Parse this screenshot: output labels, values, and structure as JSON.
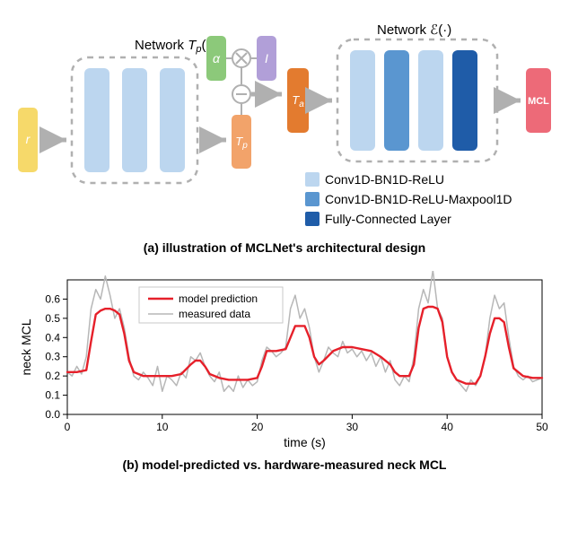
{
  "arch": {
    "label_Tp": "Network T_p(·)",
    "label_E": "Network ℰ(·)",
    "r": "r",
    "alpha": "α",
    "I": "I",
    "Ta": "T_a",
    "Tp": "T_p",
    "MCL": "MCL",
    "colors": {
      "r": "#f6d96a",
      "alpha": "#8cc97a",
      "I": "#b19fd8",
      "Ta": "#e37b2f",
      "Tp": "#f2a36a",
      "mcl": "#ed6a78",
      "conv_light": "#bcd6ef",
      "conv_med": "#5a96d0",
      "fc": "#1f5ca8",
      "arrow": "#b0b0b0",
      "dash": "#b0b0b0",
      "op_border": "#b0b0b0"
    },
    "legend": {
      "items": [
        {
          "color": "#bcd6ef",
          "label": "Conv1D-BN1D-ReLU"
        },
        {
          "color": "#5a96d0",
          "label": "Conv1D-BN1D-ReLU-Maxpool1D"
        },
        {
          "color": "#1f5ca8",
          "label": "Fully-Connected Layer"
        }
      ]
    }
  },
  "caption_a": "(a) illustration of MCLNet's architectural design",
  "caption_b": "(b) model-predicted vs. hardware-measured neck MCL",
  "chart": {
    "xlabel": "time (s)",
    "ylabel": "neck MCL",
    "xlim": [
      0,
      50
    ],
    "ylim": [
      0.0,
      0.7
    ],
    "xticks": [
      0,
      10,
      20,
      30,
      40,
      50
    ],
    "yticks": [
      0.0,
      0.1,
      0.2,
      0.3,
      0.4,
      0.5,
      0.6
    ],
    "legend": {
      "measured": "measured data",
      "predicted": "model prediction"
    },
    "colors": {
      "measured": "#b7b7b7",
      "predicted": "#e6202a",
      "axis": "#000000",
      "tick_font": 11
    },
    "measured": [
      [
        0,
        0.22
      ],
      [
        0.5,
        0.2
      ],
      [
        1,
        0.25
      ],
      [
        1.5,
        0.21
      ],
      [
        2,
        0.3
      ],
      [
        2.5,
        0.55
      ],
      [
        3,
        0.65
      ],
      [
        3.5,
        0.6
      ],
      [
        4,
        0.72
      ],
      [
        4.5,
        0.62
      ],
      [
        5,
        0.5
      ],
      [
        5.5,
        0.55
      ],
      [
        6,
        0.45
      ],
      [
        6.5,
        0.3
      ],
      [
        7,
        0.2
      ],
      [
        7.5,
        0.18
      ],
      [
        8,
        0.22
      ],
      [
        8.5,
        0.19
      ],
      [
        9,
        0.15
      ],
      [
        9.5,
        0.25
      ],
      [
        10,
        0.12
      ],
      [
        10.5,
        0.2
      ],
      [
        11,
        0.18
      ],
      [
        11.5,
        0.15
      ],
      [
        12,
        0.22
      ],
      [
        12.5,
        0.19
      ],
      [
        13,
        0.3
      ],
      [
        13.5,
        0.28
      ],
      [
        14,
        0.32
      ],
      [
        14.5,
        0.25
      ],
      [
        15,
        0.2
      ],
      [
        15.5,
        0.17
      ],
      [
        16,
        0.22
      ],
      [
        16.5,
        0.12
      ],
      [
        17,
        0.15
      ],
      [
        17.5,
        0.12
      ],
      [
        18,
        0.2
      ],
      [
        18.5,
        0.14
      ],
      [
        19,
        0.18
      ],
      [
        19.5,
        0.15
      ],
      [
        20,
        0.17
      ],
      [
        20.5,
        0.28
      ],
      [
        21,
        0.35
      ],
      [
        21.5,
        0.33
      ],
      [
        22,
        0.3
      ],
      [
        22.5,
        0.32
      ],
      [
        23,
        0.35
      ],
      [
        23.5,
        0.55
      ],
      [
        24,
        0.62
      ],
      [
        24.5,
        0.5
      ],
      [
        25,
        0.55
      ],
      [
        25.5,
        0.45
      ],
      [
        26,
        0.3
      ],
      [
        26.5,
        0.22
      ],
      [
        27,
        0.28
      ],
      [
        27.5,
        0.35
      ],
      [
        28,
        0.32
      ],
      [
        28.5,
        0.3
      ],
      [
        29,
        0.38
      ],
      [
        29.5,
        0.32
      ],
      [
        30,
        0.34
      ],
      [
        30.5,
        0.3
      ],
      [
        31,
        0.33
      ],
      [
        31.5,
        0.28
      ],
      [
        32,
        0.32
      ],
      [
        32.5,
        0.25
      ],
      [
        33,
        0.3
      ],
      [
        33.5,
        0.22
      ],
      [
        34,
        0.28
      ],
      [
        34.5,
        0.18
      ],
      [
        35,
        0.15
      ],
      [
        35.5,
        0.2
      ],
      [
        36,
        0.17
      ],
      [
        36.5,
        0.3
      ],
      [
        37,
        0.55
      ],
      [
        37.5,
        0.65
      ],
      [
        38,
        0.58
      ],
      [
        38.5,
        0.75
      ],
      [
        39,
        0.55
      ],
      [
        39.5,
        0.5
      ],
      [
        40,
        0.3
      ],
      [
        40.5,
        0.22
      ],
      [
        41,
        0.18
      ],
      [
        41.5,
        0.15
      ],
      [
        42,
        0.12
      ],
      [
        42.5,
        0.18
      ],
      [
        43,
        0.15
      ],
      [
        43.5,
        0.2
      ],
      [
        44,
        0.3
      ],
      [
        44.5,
        0.5
      ],
      [
        45,
        0.62
      ],
      [
        45.5,
        0.55
      ],
      [
        46,
        0.58
      ],
      [
        46.5,
        0.4
      ],
      [
        47,
        0.25
      ],
      [
        47.5,
        0.2
      ],
      [
        48,
        0.18
      ],
      [
        48.5,
        0.2
      ],
      [
        49,
        0.17
      ],
      [
        49.5,
        0.18
      ],
      [
        50,
        0.19
      ]
    ],
    "predicted": [
      [
        0,
        0.22
      ],
      [
        1,
        0.22
      ],
      [
        2,
        0.23
      ],
      [
        2.5,
        0.38
      ],
      [
        3,
        0.52
      ],
      [
        3.5,
        0.54
      ],
      [
        4,
        0.55
      ],
      [
        4.5,
        0.55
      ],
      [
        5,
        0.54
      ],
      [
        5.5,
        0.52
      ],
      [
        6,
        0.42
      ],
      [
        6.5,
        0.28
      ],
      [
        7,
        0.22
      ],
      [
        8,
        0.2
      ],
      [
        9,
        0.2
      ],
      [
        10,
        0.2
      ],
      [
        11,
        0.2
      ],
      [
        12,
        0.21
      ],
      [
        13,
        0.26
      ],
      [
        13.5,
        0.28
      ],
      [
        14,
        0.28
      ],
      [
        14.5,
        0.25
      ],
      [
        15,
        0.21
      ],
      [
        16,
        0.19
      ],
      [
        17,
        0.18
      ],
      [
        18,
        0.18
      ],
      [
        19,
        0.18
      ],
      [
        20,
        0.19
      ],
      [
        20.5,
        0.25
      ],
      [
        21,
        0.33
      ],
      [
        22,
        0.33
      ],
      [
        23,
        0.34
      ],
      [
        23.5,
        0.4
      ],
      [
        24,
        0.46
      ],
      [
        24.5,
        0.46
      ],
      [
        25,
        0.46
      ],
      [
        25.5,
        0.4
      ],
      [
        26,
        0.3
      ],
      [
        26.5,
        0.26
      ],
      [
        27,
        0.28
      ],
      [
        28,
        0.33
      ],
      [
        29,
        0.35
      ],
      [
        30,
        0.35
      ],
      [
        31,
        0.34
      ],
      [
        32,
        0.33
      ],
      [
        33,
        0.3
      ],
      [
        34,
        0.26
      ],
      [
        34.5,
        0.22
      ],
      [
        35,
        0.2
      ],
      [
        36,
        0.2
      ],
      [
        36.5,
        0.26
      ],
      [
        37,
        0.45
      ],
      [
        37.5,
        0.55
      ],
      [
        38,
        0.56
      ],
      [
        38.5,
        0.56
      ],
      [
        39,
        0.55
      ],
      [
        39.5,
        0.48
      ],
      [
        40,
        0.3
      ],
      [
        40.5,
        0.22
      ],
      [
        41,
        0.18
      ],
      [
        42,
        0.16
      ],
      [
        43,
        0.16
      ],
      [
        43.5,
        0.2
      ],
      [
        44,
        0.3
      ],
      [
        44.5,
        0.42
      ],
      [
        45,
        0.5
      ],
      [
        45.5,
        0.5
      ],
      [
        46,
        0.48
      ],
      [
        46.5,
        0.35
      ],
      [
        47,
        0.24
      ],
      [
        48,
        0.2
      ],
      [
        49,
        0.19
      ],
      [
        50,
        0.19
      ]
    ]
  }
}
